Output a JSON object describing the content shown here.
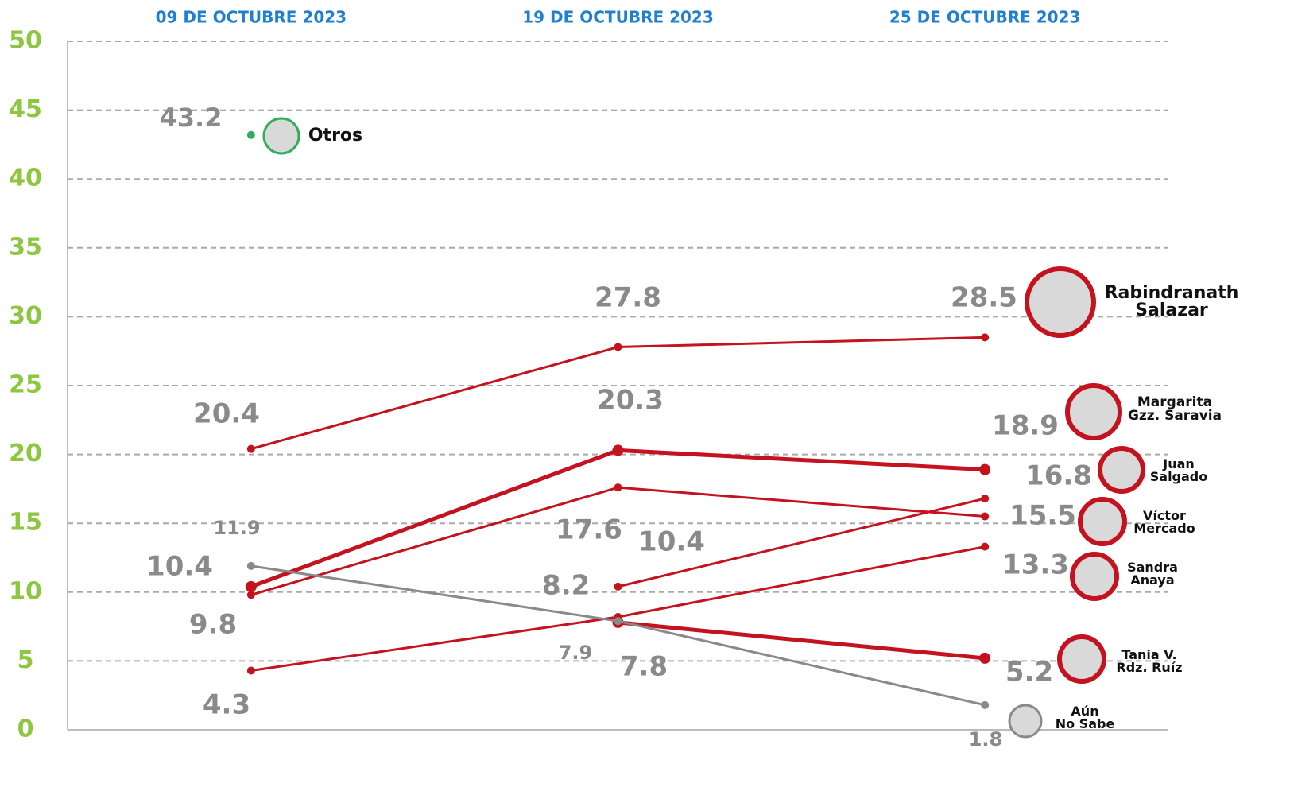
{
  "chart_data": {
    "type": "line",
    "categories": [
      "09 DE OCTUBRE 2023",
      "19 DE OCTUBRE 2023",
      "25 DE OCTUBRE 2023"
    ],
    "series": [
      {
        "name": "Rabindranath\nSalazar",
        "color": "#c4121f",
        "values": [
          20.4,
          27.8,
          28.5
        ]
      },
      {
        "name": "Margarita\nGzz. Saravia",
        "color": "#c4121f",
        "values": [
          10.4,
          20.3,
          18.9
        ]
      },
      {
        "name": "Juan\nSalgado",
        "color": "#c4121f",
        "values": [
          null,
          10.4,
          16.8
        ]
      },
      {
        "name": "Víctor\nMercado",
        "color": "#c4121f",
        "values": [
          9.8,
          17.6,
          15.5
        ]
      },
      {
        "name": "Sandra\nAnaya",
        "color": "#c4121f",
        "values": [
          4.3,
          8.2,
          13.3
        ]
      },
      {
        "name": "Tania V.\nRdz. Ruíz",
        "color": "#c4121f",
        "values": [
          null,
          7.8,
          5.2
        ]
      },
      {
        "name": "Aún\nNo Sabe",
        "color": "#8a8a8a",
        "values": [
          11.9,
          7.9,
          1.8
        ]
      },
      {
        "name": "Otros",
        "color": "#2fae5a",
        "values": [
          43.2,
          null,
          null
        ]
      }
    ],
    "ylim": [
      0,
      50
    ],
    "yticks": [
      0,
      5,
      10,
      15,
      20,
      25,
      30,
      35,
      40,
      45,
      50
    ],
    "grid": true
  }
}
